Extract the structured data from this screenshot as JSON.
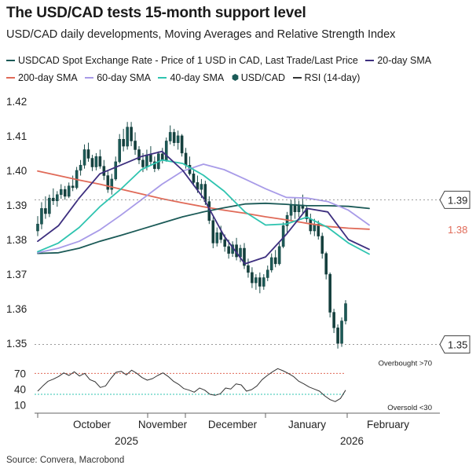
{
  "header": {
    "title": "The USD/CAD tests 15-month support level",
    "subtitle": "USD/CAD daily developments, Moving Averages and Relative Strength Index"
  },
  "legend": [
    {
      "label": "USDCAD Spot Exchange Rate - Price of 1 USD in CAD, Last Trade/Last Price",
      "color": "#1b5a57",
      "kind": "line"
    },
    {
      "label": "20-day SMA",
      "color": "#3d2f7f",
      "kind": "line"
    },
    {
      "label": "200-day SMA",
      "color": "#e06a58",
      "kind": "line"
    },
    {
      "label": "60-day SMA",
      "color": "#a89be8",
      "kind": "line"
    },
    {
      "label": "40-day SMA",
      "color": "#2fc4b0",
      "kind": "line"
    },
    {
      "label": "USD/CAD",
      "color": "#1b5a57",
      "kind": "candle"
    },
    {
      "label": "RSI (14-day)",
      "color": "#333333",
      "kind": "line"
    }
  ],
  "source": "Source: Convera, Macrobond",
  "chart_data": [
    {
      "type": "candlestick",
      "title": "The USD/CAD tests 15-month support level",
      "y_tick_labels": [
        "1.35",
        "1.36",
        "1.37",
        "1.38",
        "1.39",
        "1.40",
        "1.41",
        "1.42"
      ],
      "ylim": [
        1.348,
        1.422
      ],
      "x_tick_labels": [
        "October",
        "November",
        "December",
        "January",
        "February"
      ],
      "x_year_labels": [
        "2025",
        "2026"
      ],
      "reference_lines": [
        1.3915,
        1.3497
      ],
      "value_labels": [
        {
          "text": "1.39",
          "value": 1.3915,
          "boxed": true,
          "color": "#222222"
        },
        {
          "text": "1.38",
          "value": 1.383,
          "boxed": false,
          "color": "#e06a58"
        },
        {
          "text": "1.35",
          "value": 1.3497,
          "boxed": true,
          "color": "#222222"
        }
      ],
      "candles": [
        {
          "o": 1.3825,
          "h": 1.3868,
          "l": 1.381,
          "c": 1.3845
        },
        {
          "o": 1.3845,
          "h": 1.3908,
          "l": 1.383,
          "c": 1.389
        },
        {
          "o": 1.389,
          "h": 1.3925,
          "l": 1.386,
          "c": 1.3875
        },
        {
          "o": 1.3875,
          "h": 1.393,
          "l": 1.3865,
          "c": 1.392
        },
        {
          "o": 1.392,
          "h": 1.3948,
          "l": 1.39,
          "c": 1.3912
        },
        {
          "o": 1.3912,
          "h": 1.394,
          "l": 1.3895,
          "c": 1.393
        },
        {
          "o": 1.393,
          "h": 1.396,
          "l": 1.3918,
          "c": 1.3945
        },
        {
          "o": 1.3945,
          "h": 1.3955,
          "l": 1.3915,
          "c": 1.3925
        },
        {
          "o": 1.3925,
          "h": 1.3965,
          "l": 1.392,
          "c": 1.3955
        },
        {
          "o": 1.3955,
          "h": 1.3985,
          "l": 1.394,
          "c": 1.395
        },
        {
          "o": 1.395,
          "h": 1.401,
          "l": 1.3945,
          "c": 1.4
        },
        {
          "o": 1.4,
          "h": 1.403,
          "l": 1.3985,
          "c": 1.4015
        },
        {
          "o": 1.4015,
          "h": 1.4075,
          "l": 1.4005,
          "c": 1.406
        },
        {
          "o": 1.406,
          "h": 1.408,
          "l": 1.4025,
          "c": 1.4035
        },
        {
          "o": 1.4035,
          "h": 1.4045,
          "l": 1.3998,
          "c": 1.401
        },
        {
          "o": 1.401,
          "h": 1.405,
          "l": 1.4,
          "c": 1.404
        },
        {
          "o": 1.404,
          "h": 1.406,
          "l": 1.4005,
          "c": 1.4012
        },
        {
          "o": 1.4012,
          "h": 1.403,
          "l": 1.3972,
          "c": 1.3985
        },
        {
          "o": 1.3985,
          "h": 1.4,
          "l": 1.3935,
          "c": 1.3945
        },
        {
          "o": 1.3945,
          "h": 1.399,
          "l": 1.393,
          "c": 1.3975
        },
        {
          "o": 1.3975,
          "h": 1.404,
          "l": 1.397,
          "c": 1.4025
        },
        {
          "o": 1.4025,
          "h": 1.4105,
          "l": 1.402,
          "c": 1.409
        },
        {
          "o": 1.409,
          "h": 1.412,
          "l": 1.4055,
          "c": 1.407
        },
        {
          "o": 1.407,
          "h": 1.414,
          "l": 1.406,
          "c": 1.4125
        },
        {
          "o": 1.4125,
          "h": 1.414,
          "l": 1.407,
          "c": 1.4085
        },
        {
          "o": 1.4085,
          "h": 1.411,
          "l": 1.4045,
          "c": 1.406
        },
        {
          "o": 1.406,
          "h": 1.407,
          "l": 1.4018,
          "c": 1.403
        },
        {
          "o": 1.403,
          "h": 1.405,
          "l": 1.3995,
          "c": 1.401
        },
        {
          "o": 1.401,
          "h": 1.406,
          "l": 1.4,
          "c": 1.4045
        },
        {
          "o": 1.4045,
          "h": 1.407,
          "l": 1.4015,
          "c": 1.4025
        },
        {
          "o": 1.4025,
          "h": 1.404,
          "l": 1.3995,
          "c": 1.4005
        },
        {
          "o": 1.4005,
          "h": 1.4055,
          "l": 1.4,
          "c": 1.4048
        },
        {
          "o": 1.4048,
          "h": 1.4065,
          "l": 1.402,
          "c": 1.403
        },
        {
          "o": 1.403,
          "h": 1.4095,
          "l": 1.4025,
          "c": 1.4085
        },
        {
          "o": 1.4085,
          "h": 1.413,
          "l": 1.4075,
          "c": 1.411
        },
        {
          "o": 1.411,
          "h": 1.412,
          "l": 1.407,
          "c": 1.408
        },
        {
          "o": 1.408,
          "h": 1.4115,
          "l": 1.406,
          "c": 1.41
        },
        {
          "o": 1.41,
          "h": 1.4105,
          "l": 1.404,
          "c": 1.405
        },
        {
          "o": 1.405,
          "h": 1.4065,
          "l": 1.4005,
          "c": 1.4015
        },
        {
          "o": 1.4015,
          "h": 1.404,
          "l": 1.3985,
          "c": 1.399
        },
        {
          "o": 1.399,
          "h": 1.4005,
          "l": 1.3955,
          "c": 1.3965
        },
        {
          "o": 1.3965,
          "h": 1.3985,
          "l": 1.3935,
          "c": 1.3945
        },
        {
          "o": 1.3945,
          "h": 1.3975,
          "l": 1.392,
          "c": 1.396
        },
        {
          "o": 1.396,
          "h": 1.397,
          "l": 1.39,
          "c": 1.391
        },
        {
          "o": 1.391,
          "h": 1.3925,
          "l": 1.3845,
          "c": 1.3855
        },
        {
          "o": 1.3855,
          "h": 1.3865,
          "l": 1.3775,
          "c": 1.379
        },
        {
          "o": 1.379,
          "h": 1.3835,
          "l": 1.378,
          "c": 1.382
        },
        {
          "o": 1.382,
          "h": 1.384,
          "l": 1.379,
          "c": 1.38
        },
        {
          "o": 1.38,
          "h": 1.3815,
          "l": 1.3765,
          "c": 1.378
        },
        {
          "o": 1.378,
          "h": 1.38,
          "l": 1.3745,
          "c": 1.376
        },
        {
          "o": 1.376,
          "h": 1.3795,
          "l": 1.375,
          "c": 1.3785
        },
        {
          "o": 1.3785,
          "h": 1.3805,
          "l": 1.374,
          "c": 1.375
        },
        {
          "o": 1.375,
          "h": 1.3785,
          "l": 1.3735,
          "c": 1.3775
        },
        {
          "o": 1.3775,
          "h": 1.379,
          "l": 1.3715,
          "c": 1.3725
        },
        {
          "o": 1.3725,
          "h": 1.3745,
          "l": 1.369,
          "c": 1.3705
        },
        {
          "o": 1.3705,
          "h": 1.372,
          "l": 1.366,
          "c": 1.3675
        },
        {
          "o": 1.3675,
          "h": 1.37,
          "l": 1.3655,
          "c": 1.369
        },
        {
          "o": 1.369,
          "h": 1.3705,
          "l": 1.3645,
          "c": 1.3665
        },
        {
          "o": 1.3665,
          "h": 1.37,
          "l": 1.3655,
          "c": 1.369
        },
        {
          "o": 1.369,
          "h": 1.3725,
          "l": 1.368,
          "c": 1.3712
        },
        {
          "o": 1.3712,
          "h": 1.376,
          "l": 1.3705,
          "c": 1.3748
        },
        {
          "o": 1.3748,
          "h": 1.377,
          "l": 1.372,
          "c": 1.373
        },
        {
          "o": 1.373,
          "h": 1.379,
          "l": 1.3725,
          "c": 1.378
        },
        {
          "o": 1.378,
          "h": 1.385,
          "l": 1.3775,
          "c": 1.384
        },
        {
          "o": 1.384,
          "h": 1.388,
          "l": 1.382,
          "c": 1.387
        },
        {
          "o": 1.387,
          "h": 1.3915,
          "l": 1.3855,
          "c": 1.39
        },
        {
          "o": 1.39,
          "h": 1.392,
          "l": 1.386,
          "c": 1.388
        },
        {
          "o": 1.388,
          "h": 1.3912,
          "l": 1.3865,
          "c": 1.39
        },
        {
          "o": 1.39,
          "h": 1.393,
          "l": 1.3875,
          "c": 1.389
        },
        {
          "o": 1.389,
          "h": 1.39,
          "l": 1.385,
          "c": 1.386
        },
        {
          "o": 1.386,
          "h": 1.3875,
          "l": 1.3815,
          "c": 1.3825
        },
        {
          "o": 1.3825,
          "h": 1.386,
          "l": 1.381,
          "c": 1.3845
        },
        {
          "o": 1.3845,
          "h": 1.3855,
          "l": 1.38,
          "c": 1.381
        },
        {
          "o": 1.381,
          "h": 1.382,
          "l": 1.3745,
          "c": 1.376
        },
        {
          "o": 1.376,
          "h": 1.3765,
          "l": 1.3685,
          "c": 1.37
        },
        {
          "o": 1.37,
          "h": 1.3705,
          "l": 1.3575,
          "c": 1.359
        },
        {
          "o": 1.359,
          "h": 1.36,
          "l": 1.353,
          "c": 1.3545
        },
        {
          "o": 1.3545,
          "h": 1.3555,
          "l": 1.3485,
          "c": 1.35
        },
        {
          "o": 1.35,
          "h": 1.3575,
          "l": 1.349,
          "c": 1.3565
        },
        {
          "o": 1.3565,
          "h": 1.3625,
          "l": 1.3555,
          "c": 1.3615
        }
      ],
      "series": [
        {
          "name": "200-day SMA",
          "color": "#e06a58",
          "values": [
            1.3998,
            1.3985,
            1.3972,
            1.396,
            1.3946,
            1.3932,
            1.3918,
            1.3906,
            1.3895,
            1.3885,
            1.3876,
            1.3866,
            1.3857,
            1.3847,
            1.3838,
            1.3833,
            1.383
          ]
        },
        {
          "name": "USDCAD Spot Exchange Rate - Price of 1 USD in CAD, Last Trade/Last Price",
          "color": "#1b5a57",
          "values": [
            1.376,
            1.3762,
            1.3775,
            1.3795,
            1.3812,
            1.383,
            1.3848,
            1.3866,
            1.388,
            1.3892,
            1.3903,
            1.3905,
            1.3902,
            1.3898,
            1.3898,
            1.3896,
            1.389
          ]
        },
        {
          "name": "60-day SMA",
          "color": "#a89be8",
          "values": [
            1.3762,
            1.3775,
            1.3795,
            1.3828,
            1.387,
            1.3915,
            1.396,
            1.3998,
            1.4018,
            1.4002,
            1.3975,
            1.3947,
            1.3922,
            1.392,
            1.391,
            1.3885,
            1.3842
          ]
        },
        {
          "name": "40-day SMA",
          "color": "#2fc4b0",
          "values": [
            1.3765,
            1.379,
            1.3835,
            1.3895,
            1.3945,
            1.4002,
            1.403,
            1.402,
            1.3986,
            1.394,
            1.388,
            1.3842,
            1.3845,
            1.3865,
            1.3835,
            1.379,
            1.3758
          ]
        },
        {
          "name": "20-day SMA",
          "color": "#3d2f7f",
          "values": [
            1.3795,
            1.384,
            1.392,
            1.399,
            1.4015,
            1.404,
            1.4055,
            1.4,
            1.392,
            1.381,
            1.373,
            1.375,
            1.3815,
            1.389,
            1.388,
            1.38,
            1.3772
          ]
        }
      ]
    },
    {
      "type": "line",
      "y_tick_labels": [
        "10",
        "40",
        "70"
      ],
      "ylim": [
        0,
        90
      ],
      "reference_lines": [
        {
          "value": 70,
          "label": "Overbought >70",
          "color": "#e06a58"
        },
        {
          "value": 30,
          "label": "Oversold <30",
          "color": "#2fc4b0"
        }
      ],
      "series": [
        {
          "name": "RSI (14-day)",
          "color": "#333333",
          "values": [
            36,
            46,
            55,
            59,
            64,
            71,
            66,
            73,
            65,
            70,
            58,
            54,
            43,
            46,
            60,
            72,
            74,
            67,
            76,
            70,
            62,
            57,
            60,
            66,
            71,
            64,
            55,
            49,
            41,
            38,
            34,
            42,
            38,
            30,
            28,
            31,
            42,
            40,
            50,
            48,
            36,
            39,
            46,
            58,
            66,
            73,
            79,
            75,
            70,
            64,
            55,
            50,
            44,
            40,
            36,
            27,
            20,
            16,
            22,
            38
          ]
        }
      ]
    }
  ]
}
